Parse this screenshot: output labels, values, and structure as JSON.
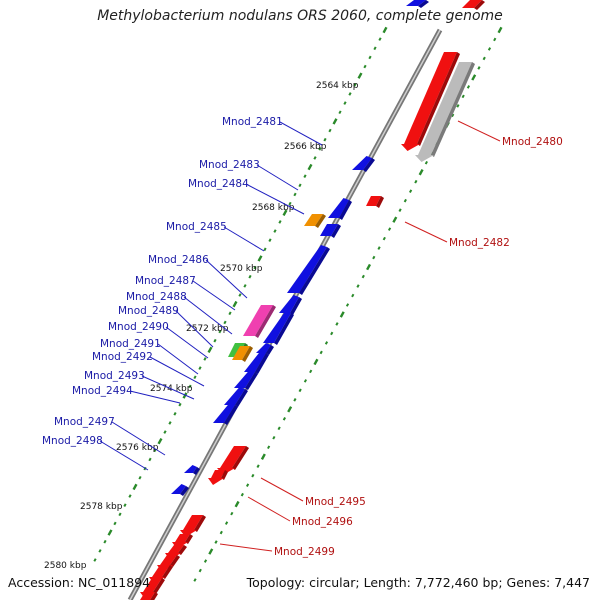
{
  "title": "Methylobacterium nodulans ORS 2060, complete genome",
  "footer": {
    "accession": "Accession: NC_011894",
    "summary": "Topology: circular; Length: 7,772,460 bp; Genes: 7,447"
  },
  "colors": {
    "forward_gene": "#1010e0",
    "reverse_gene": "#f01010",
    "pseudo_gene": "#bbbbbb",
    "orange_gene": "#f09000",
    "magenta_gene": "#f040b0",
    "green_gene": "#40c040",
    "backbone": "#888888",
    "tick_dots": "#2a8a2a",
    "blue_label": "#1a1aa6",
    "red_label": "#b01010"
  },
  "diagram": {
    "ticks": [
      {
        "label": "2564 kbp"
      },
      {
        "label": "2566 kbp"
      },
      {
        "label": "2568 kbp"
      },
      {
        "label": "2570 kbp"
      },
      {
        "label": "2572 kbp"
      },
      {
        "label": "2574 kbp"
      },
      {
        "label": "2576 kbp"
      },
      {
        "label": "2578 kbp"
      },
      {
        "label": "2580 kbp"
      }
    ],
    "left_labels": [
      {
        "label": "Mnod_2481"
      },
      {
        "label": "Mnod_2483"
      },
      {
        "label": "Mnod_2484"
      },
      {
        "label": "Mnod_2485"
      },
      {
        "label": "Mnod_2486"
      },
      {
        "label": "Mnod_2487"
      },
      {
        "label": "Mnod_2488"
      },
      {
        "label": "Mnod_2489"
      },
      {
        "label": "Mnod_2490"
      },
      {
        "label": "Mnod_2491"
      },
      {
        "label": "Mnod_2492"
      },
      {
        "label": "Mnod_2493"
      },
      {
        "label": "Mnod_2494"
      },
      {
        "label": "Mnod_2497"
      },
      {
        "label": "Mnod_2498"
      }
    ],
    "right_labels": [
      {
        "label": "Mnod_2480"
      },
      {
        "label": "Mnod_2482"
      },
      {
        "label": "Mnod_2495"
      },
      {
        "label": "Mnod_2496"
      },
      {
        "label": "Mnod_2499"
      }
    ]
  }
}
